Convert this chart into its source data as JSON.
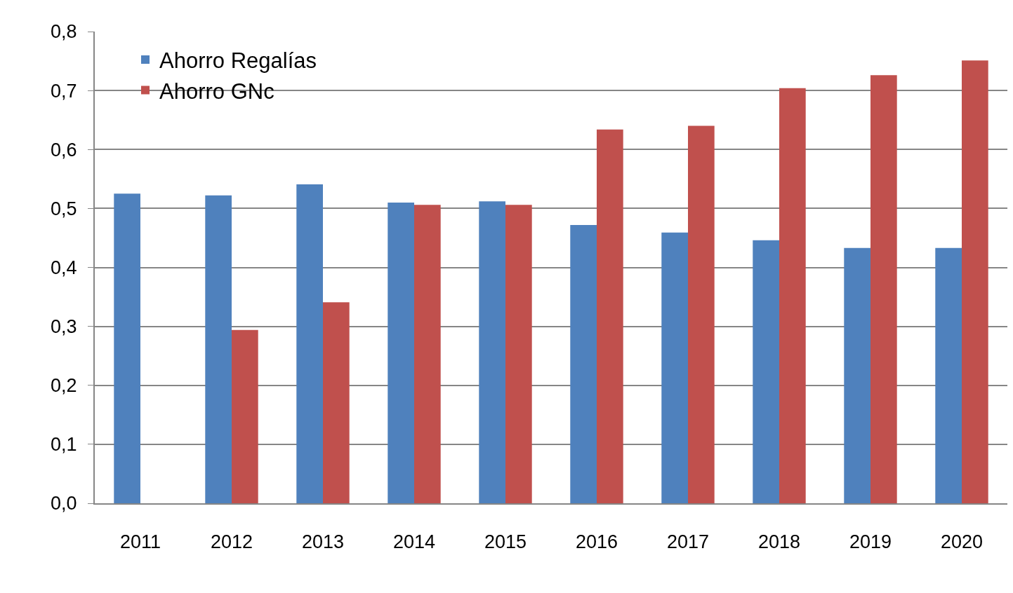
{
  "chart_data": {
    "type": "bar",
    "categories": [
      "2011",
      "2012",
      "2013",
      "2014",
      "2015",
      "2016",
      "2017",
      "2018",
      "2019",
      "2020"
    ],
    "series": [
      {
        "name": "Ahorro Regalías",
        "color": "#4f81bd",
        "values": [
          0.525,
          0.522,
          0.541,
          0.51,
          0.512,
          0.472,
          0.459,
          0.446,
          0.433,
          0.433
        ]
      },
      {
        "name": "Ahorro GNc",
        "color": "#c0504d",
        "values": [
          null,
          0.294,
          0.341,
          0.506,
          0.506,
          0.634,
          0.64,
          0.704,
          0.726,
          0.751
        ]
      }
    ],
    "ylim": [
      0,
      0.8
    ],
    "yticks": [
      {
        "value": 0,
        "label": "0,0"
      },
      {
        "value": 0.1,
        "label": "0,1"
      },
      {
        "value": 0.2,
        "label": "0,2"
      },
      {
        "value": 0.3,
        "label": "0,3"
      },
      {
        "value": 0.4,
        "label": "0,4"
      },
      {
        "value": 0.5,
        "label": "0,5"
      },
      {
        "value": 0.6,
        "label": "0,6"
      },
      {
        "value": 0.7,
        "label": "0,7"
      },
      {
        "value": 0.8,
        "label": "0,8"
      }
    ],
    "grid": "y",
    "legend": "top left"
  }
}
